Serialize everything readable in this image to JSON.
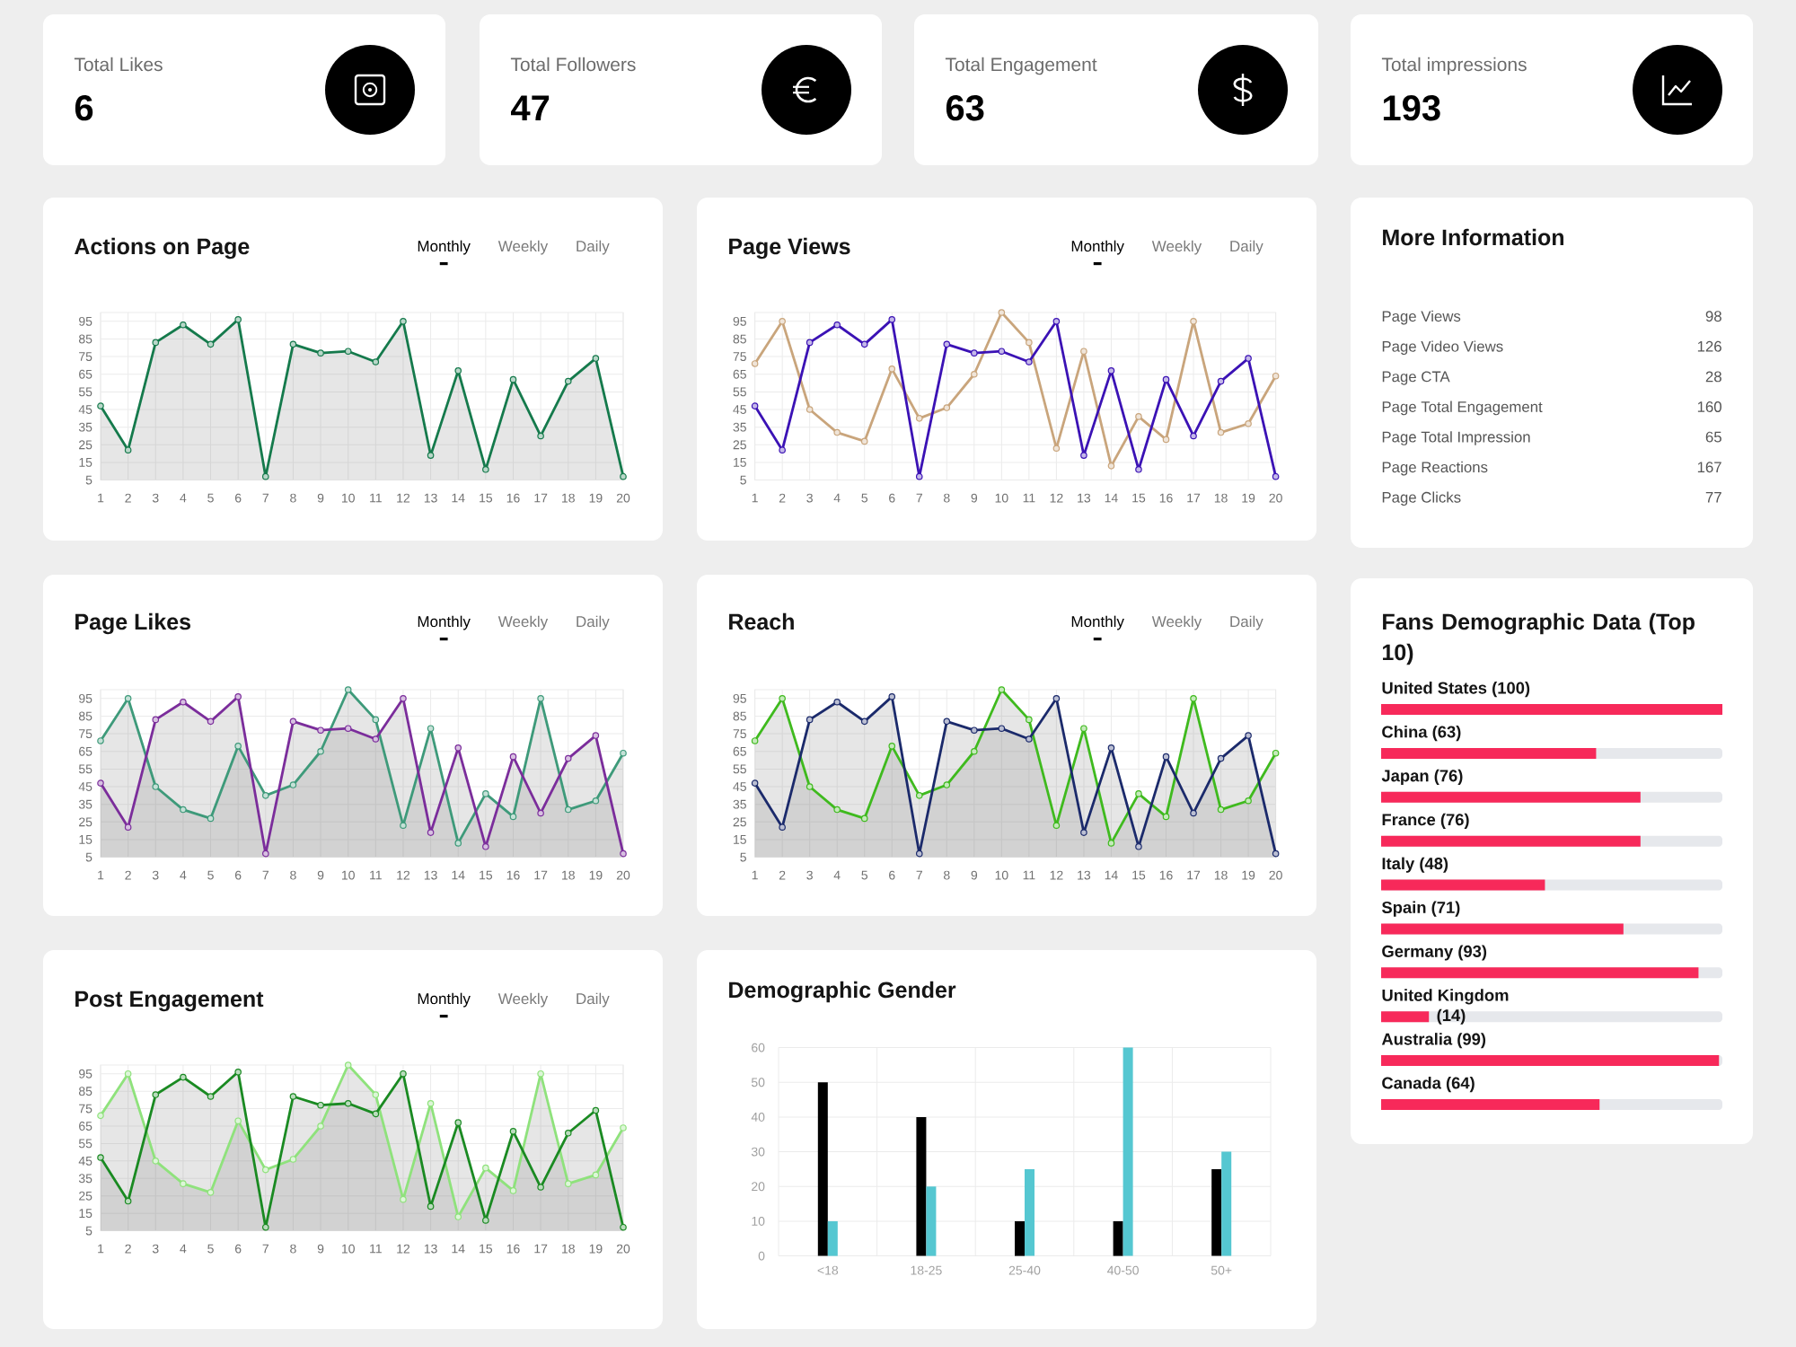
{
  "chart_data": [
    {
      "type": "other",
      "categories": [
        "Total Likes",
        "Total Followers",
        "Total Engagement",
        "Total impressions"
      ],
      "values": [
        6,
        47,
        63,
        193
      ],
      "data_labels": true
    },
    {
      "type": "area",
      "title": "Actions on Page",
      "annotations": [
        "Monthly",
        "Weekly",
        "Daily"
      ],
      "categories": [
        "1",
        "2",
        "3",
        "4",
        "5",
        "6",
        "7",
        "8",
        "9",
        "10",
        "11",
        "12",
        "13",
        "14",
        "15",
        "16",
        "17",
        "18",
        "19",
        "20"
      ],
      "series": [
        {
          "color": "#157a4c",
          "values": [
            47,
            22,
            83,
            93,
            82,
            96,
            7,
            82,
            77,
            78,
            72,
            95,
            19,
            67,
            11,
            62,
            30,
            61,
            74,
            7
          ]
        }
      ],
      "ylim": [
        5,
        100
      ],
      "yticks": [
        5,
        15,
        25,
        35,
        45,
        55,
        65,
        75,
        85,
        95
      ],
      "grid": true,
      "marker": "circle"
    },
    {
      "type": "line",
      "title": "Page Views",
      "annotations": [
        "Monthly",
        "Weekly",
        "Daily"
      ],
      "categories": [
        "1",
        "2",
        "3",
        "4",
        "5",
        "6",
        "7",
        "8",
        "9",
        "10",
        "11",
        "12",
        "13",
        "14",
        "15",
        "16",
        "17",
        "18",
        "19",
        "20"
      ],
      "series": [
        {
          "color": "#c9a57c",
          "values": [
            71,
            95,
            45,
            32,
            27,
            68,
            40,
            46,
            65,
            100,
            83,
            23,
            78,
            13,
            41,
            28,
            95,
            32,
            37,
            64
          ]
        },
        {
          "color": "#3b12b5",
          "values": [
            47,
            22,
            83,
            93,
            82,
            96,
            7,
            82,
            77,
            78,
            72,
            95,
            19,
            67,
            11,
            62,
            30,
            61,
            74,
            7
          ]
        }
      ],
      "ylim": [
        5,
        100
      ],
      "yticks": [
        5,
        15,
        25,
        35,
        45,
        55,
        65,
        75,
        85,
        95
      ],
      "grid": true,
      "marker": "circle"
    },
    {
      "type": "other",
      "title": "More Information",
      "categories": [
        "Page Views",
        "Page Video Views",
        "Page CTA",
        "Page Total Engagement",
        "Page Total Impression",
        "Page Reactions",
        "Page Clicks"
      ],
      "values": [
        98,
        126,
        28,
        160,
        65,
        167,
        77
      ],
      "data_labels": true
    },
    {
      "type": "area",
      "title": "Page Likes",
      "annotations": [
        "Monthly",
        "Weekly",
        "Daily"
      ],
      "categories": [
        "1",
        "2",
        "3",
        "4",
        "5",
        "6",
        "7",
        "8",
        "9",
        "10",
        "11",
        "12",
        "13",
        "14",
        "15",
        "16",
        "17",
        "18",
        "19",
        "20"
      ],
      "series": [
        {
          "color": "#3e9a7a",
          "values": [
            71,
            95,
            45,
            32,
            27,
            68,
            40,
            46,
            65,
            100,
            83,
            23,
            78,
            13,
            41,
            28,
            95,
            32,
            37,
            64
          ]
        },
        {
          "color": "#7b2d9b",
          "values": [
            47,
            22,
            83,
            93,
            82,
            96,
            7,
            82,
            77,
            78,
            72,
            95,
            19,
            67,
            11,
            62,
            30,
            61,
            74,
            7
          ]
        }
      ],
      "ylim": [
        5,
        100
      ],
      "yticks": [
        5,
        15,
        25,
        35,
        45,
        55,
        65,
        75,
        85,
        95
      ],
      "grid": true,
      "marker": "circle"
    },
    {
      "type": "area",
      "title": "Reach",
      "annotations": [
        "Monthly",
        "Weekly",
        "Daily"
      ],
      "categories": [
        "1",
        "2",
        "3",
        "4",
        "5",
        "6",
        "7",
        "8",
        "9",
        "10",
        "11",
        "12",
        "13",
        "14",
        "15",
        "16",
        "17",
        "18",
        "19",
        "20"
      ],
      "series": [
        {
          "color": "#3fba1e",
          "values": [
            71,
            95,
            45,
            32,
            27,
            68,
            40,
            46,
            65,
            100,
            83,
            23,
            78,
            13,
            41,
            28,
            95,
            32,
            37,
            64
          ]
        },
        {
          "color": "#1b2a6b",
          "values": [
            47,
            22,
            83,
            93,
            82,
            96,
            7,
            82,
            77,
            78,
            72,
            95,
            19,
            67,
            11,
            62,
            30,
            61,
            74,
            7
          ]
        }
      ],
      "ylim": [
        5,
        100
      ],
      "yticks": [
        5,
        15,
        25,
        35,
        45,
        55,
        65,
        75,
        85,
        95
      ],
      "grid": true,
      "marker": "circle"
    },
    {
      "type": "bar",
      "orientation": "horizontal",
      "title": "Fans Demographic Data (Top 10)",
      "categories": [
        "United States",
        "China",
        "Japan",
        "France",
        "Italy",
        "Spain",
        "Germany",
        "United Kingdom",
        "Australia",
        "Canada"
      ],
      "values": [
        100,
        63,
        76,
        76,
        48,
        71,
        93,
        14,
        99,
        64
      ],
      "value_labels": [
        "(100)",
        "(63)",
        "(76)",
        "(76)",
        "(48)",
        "(71)",
        "(93)",
        "(14)",
        "(99)",
        "(64)"
      ],
      "color": "#f7295a",
      "xlim": [
        0,
        100
      ],
      "tick_labels": "y"
    },
    {
      "type": "area",
      "title": "Post Engagement",
      "annotations": [
        "Monthly",
        "Weekly",
        "Daily"
      ],
      "categories": [
        "1",
        "2",
        "3",
        "4",
        "5",
        "6",
        "7",
        "8",
        "9",
        "10",
        "11",
        "12",
        "13",
        "14",
        "15",
        "16",
        "17",
        "18",
        "19",
        "20"
      ],
      "series": [
        {
          "color": "#8fe27c",
          "values": [
            71,
            95,
            45,
            32,
            27,
            68,
            40,
            46,
            65,
            100,
            83,
            23,
            78,
            13,
            41,
            28,
            95,
            32,
            37,
            64
          ]
        },
        {
          "color": "#1a8a22",
          "values": [
            47,
            22,
            83,
            93,
            82,
            96,
            7,
            82,
            77,
            78,
            72,
            95,
            19,
            67,
            11,
            62,
            30,
            61,
            74,
            7
          ]
        }
      ],
      "ylim": [
        5,
        100
      ],
      "yticks": [
        5,
        15,
        25,
        35,
        45,
        55,
        65,
        75,
        85,
        95
      ],
      "grid": true,
      "marker": "circle"
    },
    {
      "type": "bar",
      "title": "Demographic Gender",
      "categories": [
        "<18",
        "18-25",
        "25-40",
        "40-50",
        "50+"
      ],
      "series": [
        {
          "color": "#000000",
          "values": [
            50,
            40,
            10,
            10,
            25
          ]
        },
        {
          "color": "#55c7d1",
          "values": [
            10,
            20,
            25,
            60,
            30
          ]
        }
      ],
      "ylim": [
        0,
        60
      ],
      "yticks": [
        0,
        10,
        20,
        30,
        40,
        50,
        60
      ],
      "grid": true
    }
  ]
}
